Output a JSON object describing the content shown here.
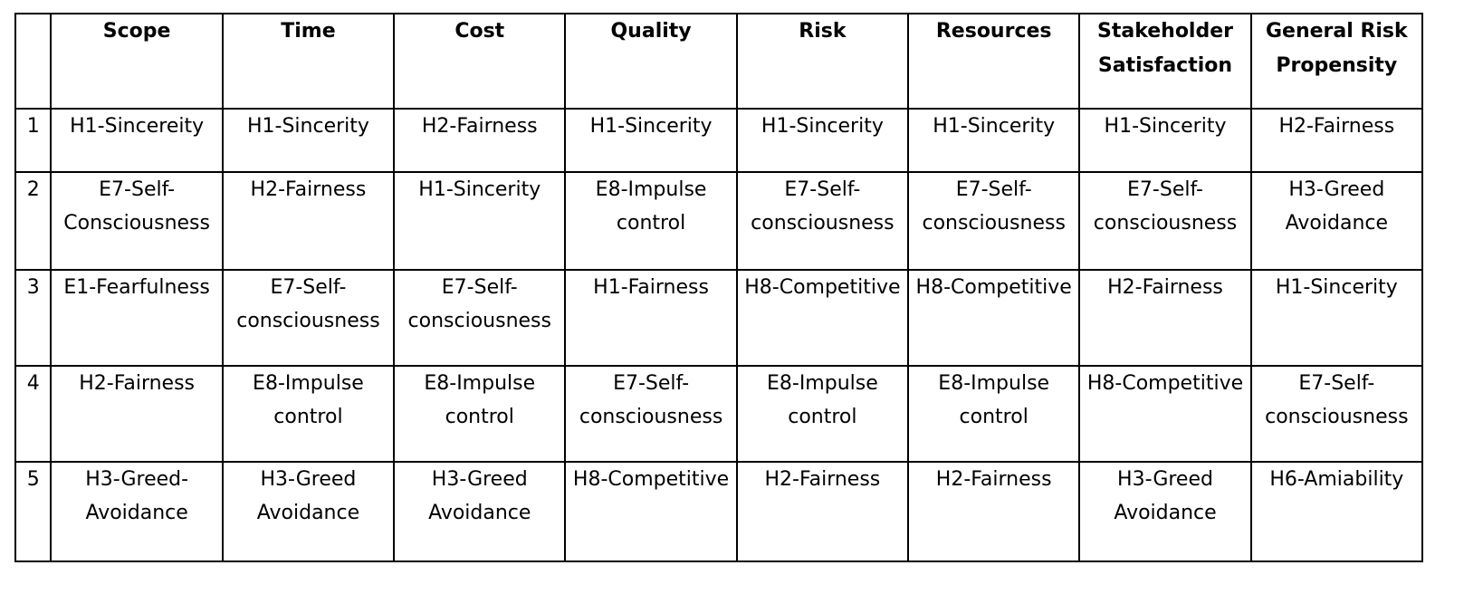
{
  "table": {
    "corner": "",
    "columns": [
      "Scope",
      "Time",
      "Cost",
      "Quality",
      "Risk",
      "Resources",
      "Stakeholder Satisfaction",
      "General Risk Propensity"
    ],
    "rows": [
      {
        "rank": "1",
        "cells": [
          "H1-Sincereity",
          "H1-Sincerity",
          "H2-Fairness",
          "H1-Sincerity",
          "H1-Sincerity",
          "H1-Sincerity",
          "H1-Sincerity",
          "H2-Fairness"
        ]
      },
      {
        "rank": "2",
        "cells": [
          "E7-Self-Consciousness",
          "H2-Fairness",
          "H1-Sincerity",
          "E8-Impulse control",
          "E7-Self-consciousness",
          "E7-Self-consciousness",
          "E7-Self-consciousness",
          "H3-Greed Avoidance"
        ]
      },
      {
        "rank": "3",
        "cells": [
          "E1-Fearfulness",
          "E7-Self-consciousness",
          "E7-Self-consciousness",
          "H1-Fairness",
          "H8-Competitive",
          "H8-Competitive",
          "H2-Fairness",
          "H1-Sincerity"
        ]
      },
      {
        "rank": "4",
        "cells": [
          "H2-Fairness",
          "E8-Impulse control",
          "E8-Impulse control",
          "E7-Self-consciousness",
          "E8-Impulse control",
          "E8-Impulse control",
          "H8-Competitive",
          "E7-Self-consciousness"
        ]
      },
      {
        "rank": "5",
        "cells": [
          "H3-Greed-Avoidance",
          "H3-Greed Avoidance",
          "H3-Greed Avoidance",
          "H8-Competitive",
          "H2-Fairness",
          "H2-Fairness",
          "H3-Greed Avoidance",
          "H6-Amiability"
        ]
      }
    ]
  }
}
